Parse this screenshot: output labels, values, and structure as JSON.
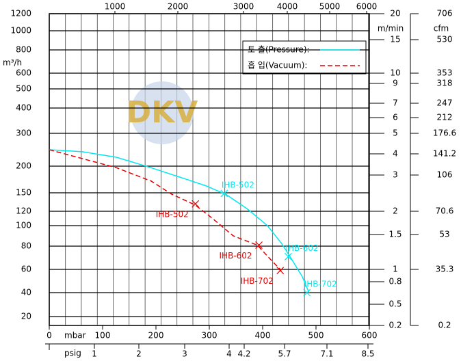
{
  "chart_data": {
    "type": "line",
    "y_label": "m³/h",
    "x_label": "mbar",
    "watermark": "DKV",
    "xlim": [
      0,
      600
    ],
    "xticks": [
      0,
      100,
      200,
      300,
      400,
      500,
      600
    ],
    "ylim": [
      12,
      1200
    ],
    "yticks": [
      1200,
      1000,
      800,
      600,
      500,
      400,
      300,
      200,
      150,
      120,
      100,
      80,
      60,
      40,
      20
    ],
    "top_axis": {
      "ticks": [
        1000,
        2000,
        3000,
        4000,
        5000,
        6000
      ]
    },
    "psig_axis": {
      "label": "psig",
      "ticks": [
        1,
        2,
        3,
        4,
        4.2,
        5.7,
        7.1,
        8.5
      ]
    },
    "m_min_axis": {
      "label": "m/min",
      "ticks": [
        20,
        15,
        10,
        9,
        7,
        6,
        5,
        4,
        3,
        2,
        1.5,
        1,
        0.8,
        0.5,
        0.2
      ]
    },
    "cfm_axis": {
      "label": "cfm",
      "ticks": [
        706,
        530,
        353,
        318,
        247,
        212,
        176.6,
        141.2,
        106,
        70.6,
        53,
        35.3,
        0.2
      ]
    },
    "legend": "top-right",
    "series": [
      {
        "name": "토 출(Pressure):",
        "color": "#00e8f0",
        "dash": false,
        "x": [
          0,
          62,
          126,
          191,
          255,
          294,
          332,
          371,
          409,
          435,
          454,
          474,
          487
        ],
        "values": [
          250,
          244,
          227,
          197,
          176,
          163,
          147,
          124,
          100,
          83,
          69,
          54,
          40
        ],
        "models": [
          {
            "name": "IHB-502",
            "x": 328,
            "y": 149
          },
          {
            "name": "IHB-602",
            "x": 448,
            "y": 71
          },
          {
            "name": "IHB-702",
            "x": 483,
            "y": 40
          }
        ]
      },
      {
        "name": "흡 입(Vacuum):",
        "color": "#e00000",
        "dash": true,
        "x": [
          0,
          62,
          126,
          191,
          229,
          274,
          306,
          345,
          390,
          416,
          435
        ],
        "values": [
          250,
          223,
          197,
          172,
          148,
          130,
          110,
          90,
          81,
          68,
          59
        ],
        "models": [
          {
            "name": "IHB-502",
            "x": 274,
            "y": 132
          },
          {
            "name": "IHB-602",
            "x": 393,
            "y": 81
          },
          {
            "name": "IHB-702",
            "x": 433,
            "y": 59
          }
        ]
      }
    ]
  }
}
